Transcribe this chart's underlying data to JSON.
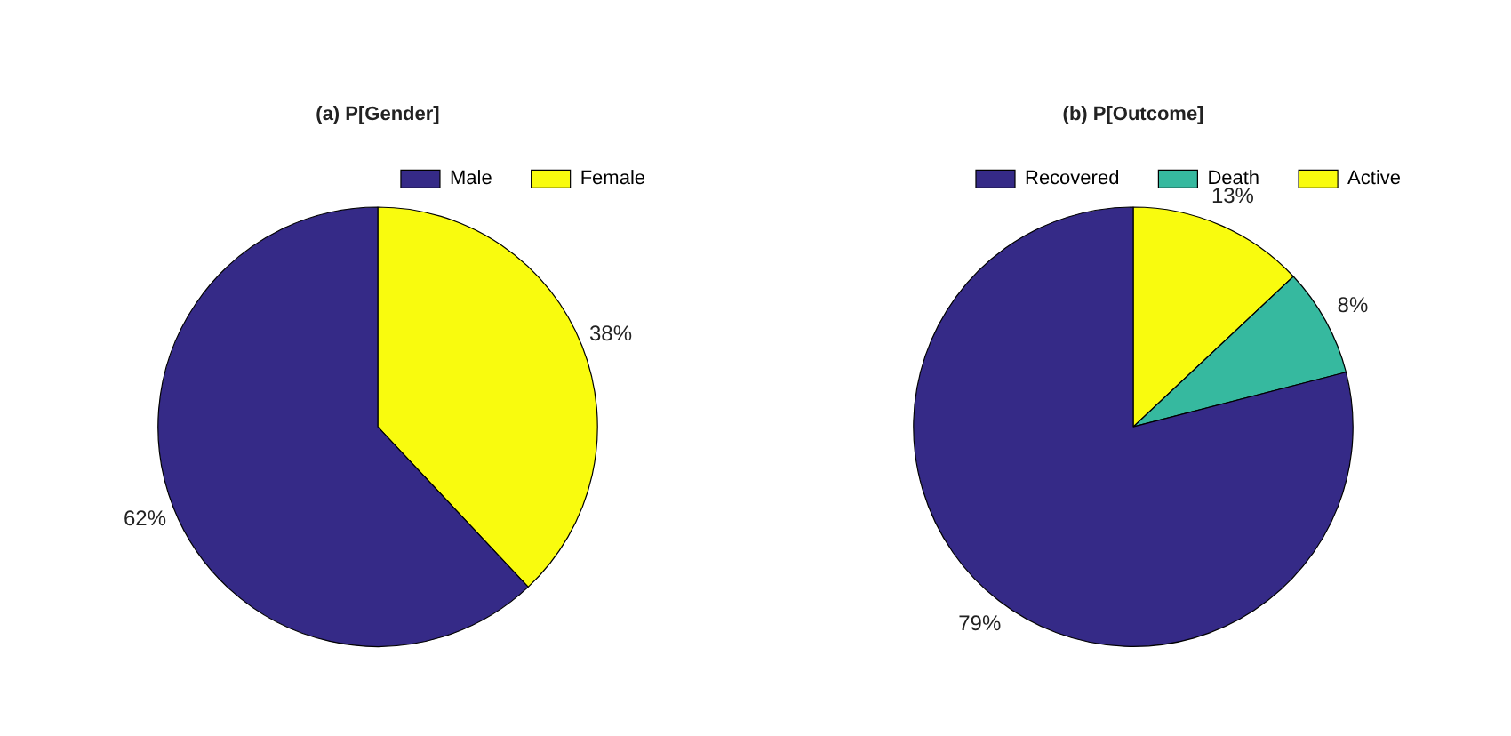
{
  "chart_data": [
    {
      "type": "pie",
      "title": "(a) P[Gender]",
      "categories": [
        "Male",
        "Female"
      ],
      "values": [
        62,
        38
      ],
      "colors": [
        "#352a87",
        "#f9fb0e"
      ],
      "value_labels": [
        "62%",
        "38%"
      ],
      "legend": "top right"
    },
    {
      "type": "pie",
      "title": "(b) P[Outcome]",
      "categories": [
        "Recovered",
        "Death",
        "Active"
      ],
      "values": [
        79,
        8,
        13
      ],
      "colors": [
        "#352a87",
        "#36b99f",
        "#f9fb0e"
      ],
      "value_labels": [
        "79%",
        "8%",
        "13%"
      ],
      "legend": "top right"
    }
  ]
}
